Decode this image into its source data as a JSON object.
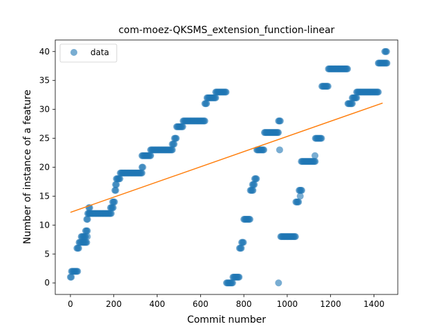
{
  "chart_data": {
    "type": "scatter",
    "title": "com-moez-QKSMS_extension_function-linear",
    "xlabel": "Commit number",
    "ylabel": "Number of instance of a feature",
    "xlim": [
      -70,
      1510
    ],
    "ylim": [
      -2,
      42
    ],
    "xticks": [
      0,
      200,
      400,
      600,
      800,
      1000,
      1200,
      1400
    ],
    "yticks": [
      0,
      5,
      10,
      15,
      20,
      25,
      30,
      35,
      40
    ],
    "grid": false,
    "legend": {
      "placement": "top-left",
      "entries": [
        "data"
      ]
    },
    "colors": {
      "points": "#1f77b4",
      "fit": "#ff7f0e"
    },
    "series": [
      {
        "name": "data",
        "kind": "scatter",
        "segments": [
          [
            0,
            5,
            1
          ],
          [
            5,
            35,
            2
          ],
          [
            30,
            40,
            6
          ],
          [
            40,
            50,
            7
          ],
          [
            50,
            70,
            8
          ],
          [
            55,
            75,
            7
          ],
          [
            70,
            78,
            9
          ],
          [
            75,
            80,
            11
          ],
          [
            80,
            88,
            12
          ],
          [
            85,
            90,
            13
          ],
          [
            88,
            190,
            12
          ],
          [
            185,
            200,
            13
          ],
          [
            195,
            205,
            14
          ],
          [
            205,
            210,
            16
          ],
          [
            208,
            212,
            17
          ],
          [
            212,
            230,
            18
          ],
          [
            230,
            330,
            19
          ],
          [
            330,
            335,
            20
          ],
          [
            330,
            370,
            22
          ],
          [
            370,
            470,
            23
          ],
          [
            470,
            480,
            24
          ],
          [
            480,
            490,
            25
          ],
          [
            490,
            520,
            27
          ],
          [
            520,
            620,
            28
          ],
          [
            620,
            630,
            31
          ],
          [
            630,
            670,
            32
          ],
          [
            670,
            720,
            33
          ],
          [
            720,
            750,
            0
          ],
          [
            750,
            780,
            1
          ],
          [
            780,
            790,
            6
          ],
          [
            790,
            800,
            7
          ],
          [
            800,
            830,
            11
          ],
          [
            830,
            845,
            16
          ],
          [
            840,
            850,
            17
          ],
          [
            850,
            860,
            18
          ],
          [
            860,
            895,
            23
          ],
          [
            895,
            960,
            26
          ],
          [
            960,
            970,
            28
          ],
          [
            970,
            1040,
            8
          ],
          [
            1040,
            1055,
            14
          ],
          [
            1055,
            1070,
            16
          ],
          [
            1065,
            1130,
            21
          ],
          [
            1130,
            1160,
            25
          ],
          [
            1160,
            1190,
            34
          ],
          [
            1190,
            1280,
            37
          ],
          [
            1280,
            1300,
            31
          ],
          [
            1300,
            1320,
            32
          ],
          [
            1320,
            1420,
            33
          ],
          [
            1420,
            1460,
            38
          ],
          [
            1450,
            1460,
            40
          ]
        ],
        "extra_points": [
          [
            960,
            0
          ],
          [
            965,
            23
          ],
          [
            1060,
            15
          ],
          [
            1128,
            22
          ],
          [
            78,
            8
          ]
        ]
      },
      {
        "name": "fit",
        "kind": "line",
        "x": [
          0,
          1440
        ],
        "y": [
          12.2,
          31.1
        ]
      }
    ]
  }
}
